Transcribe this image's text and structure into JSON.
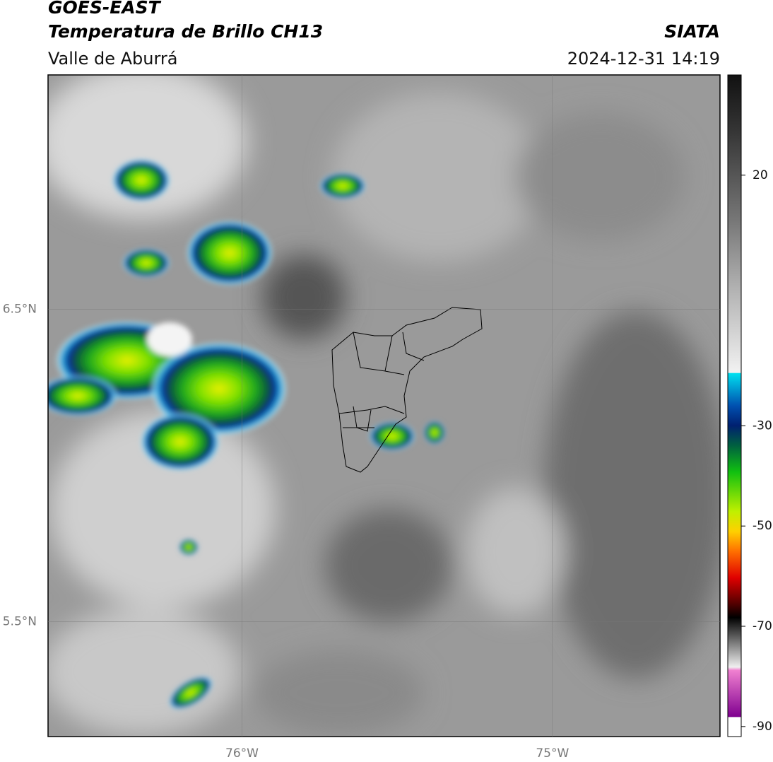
{
  "header": {
    "title": "GOES-EAST",
    "subtitle": "Temperatura de Brillo CH13",
    "region": "Valle de Aburrá",
    "source": "SIATA",
    "timestamp": "2024-12-31 14:19"
  },
  "map": {
    "xlim": [
      -76.625,
      -74.46
    ],
    "ylim": [
      5.133,
      7.25
    ],
    "xticks": [
      {
        "value": -76,
        "label": "76°W"
      },
      {
        "value": -75,
        "label": "75°W"
      }
    ],
    "yticks": [
      {
        "value": 6.5,
        "label": "6.5°N"
      },
      {
        "value": 5.5,
        "label": "5.5°N"
      }
    ]
  },
  "colorbar": {
    "lim": [
      -92,
      40
    ],
    "ticks": [
      20,
      -30,
      -50,
      -70,
      -90
    ]
  }
}
